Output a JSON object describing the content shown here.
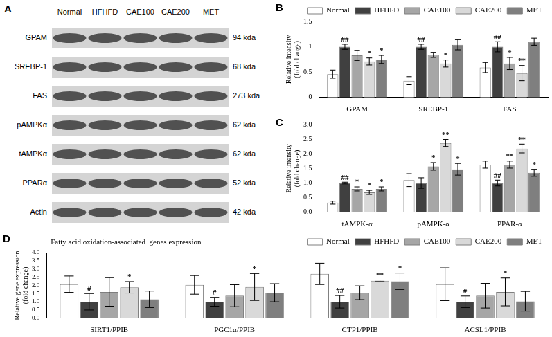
{
  "blot": {
    "panel": "A",
    "lanes": [
      "Normal",
      "HFHFD",
      "CAE100",
      "CAE200",
      "MET"
    ],
    "proteins": [
      {
        "name": "GPAM",
        "size": "94 kda"
      },
      {
        "name": "SREBP-1",
        "size": "68 kda"
      },
      {
        "name": "FAS",
        "size": "273 kda"
      },
      {
        "name": "pAMPKα",
        "size": "62 kda"
      },
      {
        "name": "tAMPKα",
        "size": "62 kda"
      },
      {
        "name": "PPARα",
        "size": "52 kda"
      },
      {
        "name": "Actin",
        "size": "42 kda"
      }
    ]
  },
  "chart_data": [
    {
      "panel": "B",
      "type": "bar",
      "y_label": [
        "Relative intensity",
        "(fold change)"
      ],
      "categories": [
        "GPAM",
        "SREBP-1",
        "FAS"
      ],
      "ylim": [
        0,
        1.5
      ],
      "yticks": [
        0,
        0.5,
        1,
        1.5
      ],
      "grid": false,
      "legend": "top-right",
      "series": [
        {
          "name": "Normal",
          "color": "#ffffff",
          "values": [
            0.46,
            0.33,
            0.59
          ],
          "errors": [
            0.08,
            0.08,
            0.1
          ],
          "annotations": [
            null,
            null,
            null
          ]
        },
        {
          "name": "HFHFD",
          "color": "#404040",
          "values": [
            1.0,
            1.0,
            1.0
          ],
          "errors": [
            0.05,
            0.05,
            0.1
          ],
          "annotations": [
            "##",
            "##",
            "##"
          ]
        },
        {
          "name": "CAE100",
          "color": "#a6a6a6",
          "values": [
            0.83,
            0.84,
            0.67
          ],
          "errors": [
            0.1,
            0.05,
            0.12
          ],
          "annotations": [
            null,
            null,
            "*"
          ]
        },
        {
          "name": "CAE200",
          "color": "#d9d9d9",
          "values": [
            0.71,
            0.67,
            0.48
          ],
          "errors": [
            0.07,
            0.07,
            0.15
          ],
          "annotations": [
            "*",
            "*",
            "**"
          ]
        },
        {
          "name": "MET",
          "color": "#7f7f7f",
          "values": [
            0.75,
            1.04,
            1.1
          ],
          "errors": [
            0.08,
            0.1,
            0.07
          ],
          "annotations": [
            "*",
            null,
            null
          ]
        }
      ]
    },
    {
      "panel": "C",
      "type": "bar",
      "y_label": [
        "Relative intensity",
        "(fold change)"
      ],
      "categories": [
        "tAMPK-α",
        "pAMPK-α",
        "PPAR-α"
      ],
      "ylim": [
        0,
        3
      ],
      "yticks": [
        {
          "value": 0,
          "label": "0.0"
        },
        0.5,
        {
          "value": 1,
          "label": "1.0"
        },
        1.5,
        {
          "value": 2,
          "label": "2.0"
        },
        2.5,
        {
          "value": 3,
          "label": "3.0"
        }
      ],
      "grid": false,
      "series": [
        {
          "name": "Normal",
          "color": "#ffffff",
          "values": [
            0.33,
            1.1,
            1.63
          ],
          "errors": [
            0.05,
            0.22,
            0.12
          ],
          "annotations": [
            null,
            null,
            null
          ]
        },
        {
          "name": "HFHFD",
          "color": "#404040",
          "values": [
            1.0,
            1.0,
            1.0
          ],
          "errors": [
            0.03,
            0.18,
            0.1
          ],
          "annotations": [
            "##",
            null,
            "##"
          ]
        },
        {
          "name": "CAE100",
          "color": "#a6a6a6",
          "values": [
            0.8,
            1.57,
            1.63
          ],
          "errors": [
            0.07,
            0.13,
            0.12
          ],
          "annotations": [
            "*",
            "*",
            "**"
          ]
        },
        {
          "name": "CAE200",
          "color": "#d9d9d9",
          "values": [
            0.68,
            2.37,
            2.18
          ],
          "errors": [
            0.07,
            0.12,
            0.15
          ],
          "annotations": [
            "*",
            "**",
            "**"
          ]
        },
        {
          "name": "MET",
          "color": "#7f7f7f",
          "values": [
            0.8,
            1.47,
            1.35
          ],
          "errors": [
            0.07,
            0.2,
            0.12
          ],
          "annotations": [
            "*",
            "*",
            "*"
          ]
        }
      ]
    },
    {
      "panel": "D",
      "type": "bar",
      "title": "Fatty acid oxidation-associated  genes expression",
      "y_label": [
        "Relative gene expression",
        "(fold change)"
      ],
      "categories": [
        "SIRT1/PPIB",
        "PGC1α/PPIB",
        "CTP1/PPIB",
        "ACSL1/PPIB"
      ],
      "ylim": [
        0,
        4
      ],
      "yticks": [
        {
          "value": 0,
          "label": "0.0"
        },
        0.5,
        {
          "value": 1,
          "label": "1.0"
        },
        1.5,
        {
          "value": 2,
          "label": "2.0"
        },
        2.5,
        {
          "value": 3,
          "label": "3.0"
        },
        3.5,
        {
          "value": 4,
          "label": "4.0"
        }
      ],
      "grid": false,
      "legend": "top-right",
      "series": [
        {
          "name": "Normal",
          "color": "#ffffff",
          "values": [
            2.07,
            2.03,
            2.7,
            2.07
          ],
          "errors": [
            0.5,
            0.57,
            0.65,
            1.0
          ],
          "annotations": [
            null,
            null,
            null,
            null
          ]
        },
        {
          "name": "HFHFD",
          "color": "#404040",
          "values": [
            1.0,
            1.0,
            1.0,
            1.0
          ],
          "errors": [
            0.5,
            0.27,
            0.38,
            0.35
          ],
          "annotations": [
            "#",
            "#",
            "##",
            "#"
          ]
        },
        {
          "name": "CAE100",
          "color": "#a6a6a6",
          "values": [
            1.6,
            1.37,
            1.55,
            1.37
          ],
          "errors": [
            0.87,
            0.67,
            0.42,
            0.75
          ],
          "annotations": [
            null,
            null,
            null,
            null
          ]
        },
        {
          "name": "CAE200",
          "color": "#d9d9d9",
          "values": [
            1.88,
            1.9,
            2.28,
            1.6
          ],
          "errors": [
            0.35,
            0.82,
            0.05,
            0.85
          ],
          "annotations": [
            "*",
            "*",
            "**",
            "*"
          ]
        },
        {
          "name": "MET",
          "color": "#7f7f7f",
          "values": [
            1.15,
            1.55,
            2.25,
            1.03
          ],
          "errors": [
            0.5,
            0.55,
            0.5,
            0.6
          ],
          "annotations": [
            null,
            null,
            "*",
            null
          ]
        }
      ]
    }
  ]
}
